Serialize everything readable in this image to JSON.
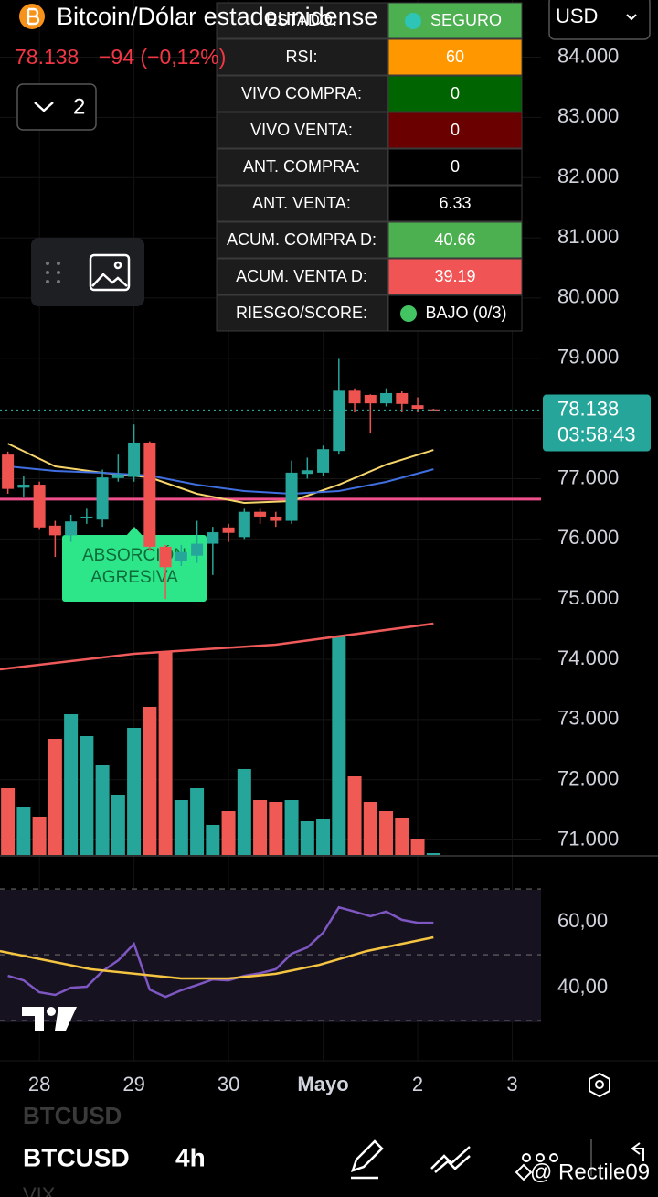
{
  "header": {
    "symbol_title": "Bitcoin/Dólar estadounidense",
    "price": "78.138",
    "change": "−94 (−0,12%)",
    "currency": "USD",
    "indicator_count": "2"
  },
  "table": {
    "rows": [
      [
        "ESTADO:",
        "SEGURO"
      ],
      [
        "RSI:",
        "60"
      ],
      [
        "VIVO COMPRA:",
        "0"
      ],
      [
        "VIVO VENTA:",
        "0"
      ],
      [
        "ANT. COMPRA:",
        "0"
      ],
      [
        "ANT. VENTA:",
        "6.33"
      ],
      [
        "ACUM. COMPRA D:",
        "40.66"
      ],
      [
        "ACUM. VENTA D:",
        "39.19"
      ],
      [
        "RIESGO/SCORE:",
        "BAJO (0/3)"
      ]
    ]
  },
  "chart_data": [
    {
      "type": "candlestick",
      "up_color": "#26a69a",
      "down_color": "#ef5350",
      "x": [
        -8,
        -4,
        0,
        4,
        8,
        12,
        16,
        20,
        24,
        28,
        32,
        36,
        40,
        44,
        48,
        52,
        56,
        60,
        64,
        68,
        72,
        76,
        80,
        84,
        88,
        92,
        96,
        100
      ],
      "open": [
        77400,
        76850,
        76900,
        76220,
        76060,
        76350,
        76320,
        77010,
        77030,
        77600,
        75870,
        75630,
        75720,
        75920,
        76190,
        76030,
        76450,
        76370,
        76300,
        77080,
        77100,
        77460,
        78460,
        78390,
        78250,
        78420,
        78220,
        78150
      ],
      "high": [
        77450,
        77050,
        76950,
        76300,
        76400,
        76500,
        77150,
        77400,
        77900,
        77620,
        75900,
        75900,
        76300,
        76200,
        76250,
        76500,
        76500,
        76450,
        77300,
        77350,
        77550,
        78990,
        78500,
        78400,
        78500,
        78450,
        78350,
        78160
      ],
      "low": [
        76750,
        76700,
        76150,
        75700,
        75950,
        76250,
        76200,
        76950,
        76950,
        75800,
        75000,
        75550,
        75600,
        75400,
        75950,
        76000,
        76250,
        76200,
        76250,
        77000,
        77050,
        77400,
        78100,
        77750,
        78200,
        78100,
        78100,
        78130
      ],
      "close": [
        76830,
        76900,
        76190,
        76060,
        76290,
        76370,
        77020,
        77070,
        77600,
        75870,
        75530,
        75780,
        75920,
        76110,
        76100,
        76450,
        76370,
        76300,
        77100,
        77140,
        77490,
        78460,
        78250,
        78250,
        78420,
        78240,
        78160,
        78138
      ],
      "lines": [
        {
          "color": "#f5d46a",
          "x": [
            -8,
            4,
            16,
            28,
            40,
            52,
            64,
            76,
            88,
            100
          ],
          "values": [
            77583,
            77204,
            77098,
            77022,
            76749,
            76597,
            76627,
            76900,
            77234,
            77477
          ]
        },
        {
          "color": "#3f6fe0",
          "x": [
            -8,
            4,
            16,
            28,
            40,
            52,
            64,
            76,
            88,
            100
          ],
          "values": [
            77204,
            77128,
            77098,
            77052,
            76900,
            76794,
            76749,
            76794,
            76946,
            77158
          ]
        }
      ],
      "levels": [
        {
          "value": 76660,
          "color": "#f0508c"
        }
      ],
      "last_price": {
        "value": 78138,
        "label": "78.138"
      },
      "countdown": "03:58:43",
      "annotation_lines": [
        "ABSORCIÓN",
        "AGRESIVA"
      ],
      "xlim": [
        -10,
        127.3
      ],
      "ylim": [
        70750,
        84950
      ],
      "yticks": [
        {
          "value": 84000,
          "label": "84.000"
        },
        {
          "value": 83000,
          "label": "83.000"
        },
        {
          "value": 82000,
          "label": "82.000"
        },
        {
          "value": 81000,
          "label": "81.000"
        },
        {
          "value": 80000,
          "label": "80.000"
        },
        {
          "value": 79000,
          "label": "79.000"
        },
        {
          "value": 78000,
          "label": "78.000"
        },
        {
          "value": 77000,
          "label": "77.000"
        },
        {
          "value": 76000,
          "label": "76.000"
        },
        {
          "value": 75000,
          "label": "75.000"
        },
        {
          "value": 74000,
          "label": "74.000"
        },
        {
          "value": 73000,
          "label": "73.000"
        },
        {
          "value": 72000,
          "label": "72.000"
        },
        {
          "value": 71000,
          "label": "71.000"
        }
      ],
      "grid": true
    },
    {
      "type": "bar",
      "x": [
        -8,
        -4,
        0,
        4,
        8,
        12,
        16,
        20,
        24,
        28,
        32,
        36,
        40,
        44,
        48,
        52,
        56,
        60,
        64,
        68,
        72,
        76,
        80,
        84,
        88,
        92,
        96,
        100
      ],
      "values": [
        73,
        53,
        42,
        127,
        154,
        130,
        98,
        66,
        139,
        162,
        223,
        60,
        73,
        33,
        48,
        94,
        60,
        58,
        60,
        37,
        39,
        239,
        86,
        58,
        48,
        40,
        17,
        2
      ],
      "colors": [
        "#f05a55",
        "#26a69a",
        "#f05a55",
        "#f05a55",
        "#26a69a",
        "#26a69a",
        "#26a69a",
        "#26a69a",
        "#26a69a",
        "#f05a55",
        "#f05a55",
        "#26a69a",
        "#26a69a",
        "#26a69a",
        "#f05a55",
        "#26a69a",
        "#f05a55",
        "#f05a55",
        "#26a69a",
        "#26a69a",
        "#26a69a",
        "#26a69a",
        "#f05a55",
        "#f05a55",
        "#f05a55",
        "#f05a55",
        "#f05a55",
        "#26a69a"
      ],
      "lines": [
        {
          "color": "#f05a5a",
          "x": [
            -10,
            24,
            60,
            100
          ],
          "values": [
            203,
            220,
            230,
            253
          ]
        }
      ],
      "xlim": [
        -10,
        127.3
      ],
      "ylim": [
        0,
        260
      ]
    },
    {
      "type": "line",
      "lines": [
        {
          "color": "#7e57c2",
          "x": [
            -8,
            -4,
            0,
            4,
            8,
            12,
            16,
            20,
            24,
            28,
            32,
            36,
            40,
            44,
            48,
            52,
            56,
            60,
            64,
            68,
            72,
            76,
            80,
            84,
            88,
            92,
            96,
            100
          ],
          "values": [
            43.6,
            42.2,
            38.6,
            37.8,
            40.0,
            40.3,
            45.0,
            48.3,
            53.3,
            39.4,
            37.2,
            39.2,
            40.8,
            42.5,
            42.2,
            43.6,
            44.4,
            45.6,
            50.3,
            52.2,
            56.7,
            64.4,
            63.1,
            61.7,
            63.1,
            60.6,
            59.7,
            59.7
          ]
        },
        {
          "color": "#f5c542",
          "x": [
            -10,
            13,
            36,
            48,
            60,
            71,
            83,
            100
          ],
          "values": [
            51.1,
            45.6,
            42.8,
            42.8,
            44.2,
            46.9,
            51.1,
            55.3
          ]
        }
      ],
      "levels": [
        70,
        50,
        30
      ],
      "xlim": [
        -10,
        127.3
      ],
      "ylim": [
        17.8,
        78.9
      ],
      "yticks": [
        {
          "value": 60,
          "label": "60,00"
        },
        {
          "value": 40,
          "label": "40,00"
        }
      ],
      "xticks": [
        {
          "value": 0,
          "label": "28"
        },
        {
          "value": 24,
          "label": "29"
        },
        {
          "value": 48,
          "label": "30"
        },
        {
          "value": 72,
          "label": "Mayo"
        },
        {
          "value": 96,
          "label": "2"
        },
        {
          "value": 120,
          "label": "3"
        }
      ]
    }
  ],
  "bottom_bar": {
    "faded_symbol": "BTCUSD",
    "symbol": "BTCUSD",
    "interval": "4h",
    "faded_next": "VIX",
    "watermark": "@ Rectile09"
  }
}
